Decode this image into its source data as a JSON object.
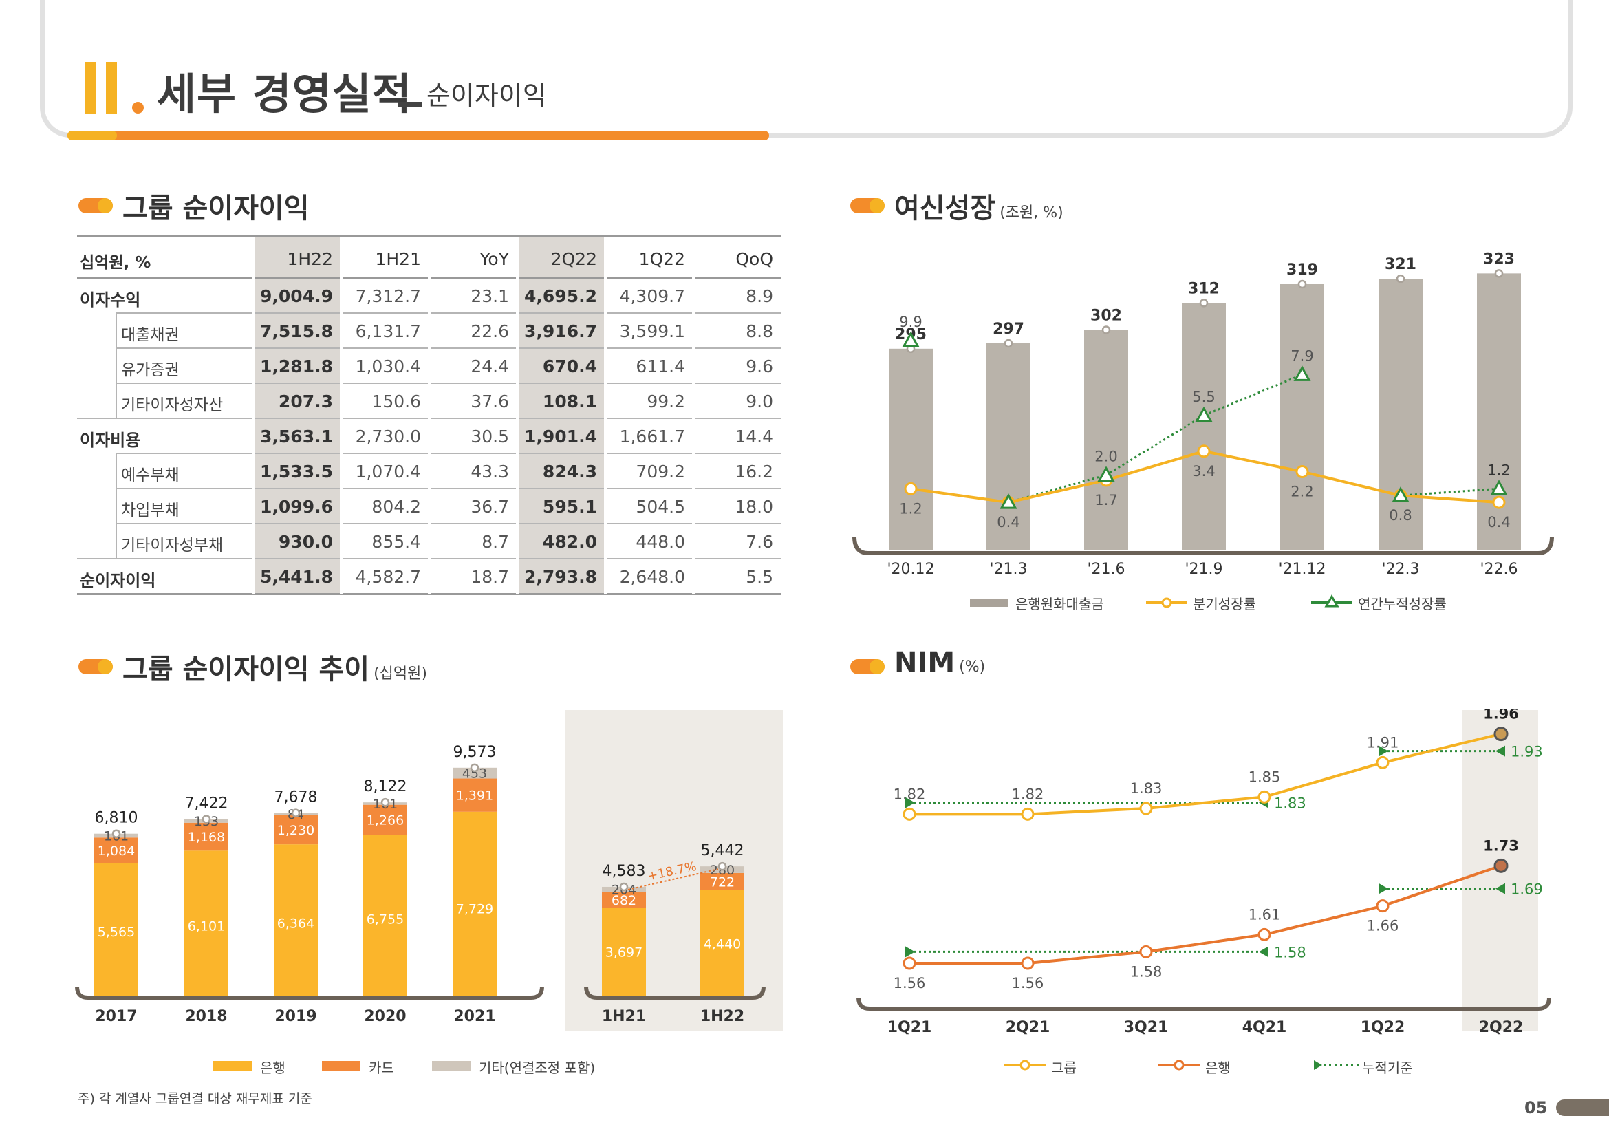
{
  "header": {
    "roman": "II",
    "title": "세부 경영실적",
    "underscore": "_",
    "subtitle": "순이자이익"
  },
  "sections": {
    "net_interest": {
      "title": "그룹 순이자이익"
    },
    "loan_growth": {
      "title": "여신성장",
      "unit": "(조원, %)"
    },
    "nii_trend": {
      "title": "그룹 순이자이익 추이",
      "unit": "(십억원)"
    },
    "nim": {
      "title": "NIM",
      "unit": "(%)"
    }
  },
  "table": {
    "columns": [
      "십억원, %",
      "1H22",
      "1H21",
      "YoY",
      "2Q22",
      "1Q22",
      "QoQ"
    ],
    "rows": [
      {
        "label": "이자수익",
        "indent": false,
        "values": [
          "9,004.9",
          "7,312.7",
          "23.1",
          "4,695.2",
          "4,309.7",
          "8.9"
        ]
      },
      {
        "label": "대출채권",
        "indent": true,
        "values": [
          "7,515.8",
          "6,131.7",
          "22.6",
          "3,916.7",
          "3,599.1",
          "8.8"
        ]
      },
      {
        "label": "유가증권",
        "indent": true,
        "values": [
          "1,281.8",
          "1,030.4",
          "24.4",
          "670.4",
          "611.4",
          "9.6"
        ]
      },
      {
        "label": "기타이자성자산",
        "indent": true,
        "values": [
          "207.3",
          "150.6",
          "37.6",
          "108.1",
          "99.2",
          "9.0"
        ]
      },
      {
        "label": "이자비용",
        "indent": false,
        "values": [
          "3,563.1",
          "2,730.0",
          "30.5",
          "1,901.4",
          "1,661.7",
          "14.4"
        ]
      },
      {
        "label": "예수부채",
        "indent": true,
        "values": [
          "1,533.5",
          "1,070.4",
          "43.3",
          "824.3",
          "709.2",
          "16.2"
        ]
      },
      {
        "label": "차입부채",
        "indent": true,
        "values": [
          "1,099.6",
          "804.2",
          "36.7",
          "595.1",
          "504.5",
          "18.0"
        ]
      },
      {
        "label": "기타이자성부채",
        "indent": true,
        "values": [
          "930.0",
          "855.4",
          "8.7",
          "482.0",
          "448.0",
          "7.6"
        ]
      },
      {
        "label": "순이자이익",
        "indent": false,
        "values": [
          "5,441.8",
          "4,582.7",
          "18.7",
          "2,793.8",
          "2,648.0",
          "5.5"
        ]
      }
    ]
  },
  "chart_data": [
    {
      "type": "bar",
      "id": "loan-growth",
      "categories": [
        "'20.12",
        "'21.3",
        "'21.6",
        "'21.9",
        "'21.12",
        "'22.3",
        "'22.6"
      ],
      "series": [
        {
          "name": "은행원화대출금",
          "kind": "bar",
          "values": [
            295,
            297,
            302,
            312,
            319,
            321,
            323
          ],
          "color": "#b9b3aa"
        },
        {
          "name": "분기성장률",
          "kind": "line",
          "values": [
            1.2,
            0.4,
            1.7,
            3.4,
            2.2,
            0.8,
            0.4
          ],
          "color": "#f5b223"
        },
        {
          "name": "연간누적성장률",
          "kind": "line",
          "values": [
            9.9,
            0.4,
            2.0,
            5.5,
            7.9,
            0.8,
            1.2
          ],
          "color": "#2e8b3a"
        }
      ],
      "ylim_bar": [
        0,
        330
      ],
      "legend": "bottom"
    },
    {
      "type": "bar",
      "id": "nii-trend-annual",
      "stacked": true,
      "categories": [
        "2017",
        "2018",
        "2019",
        "2020",
        "2021"
      ],
      "series": [
        {
          "name": "은행",
          "values": [
            5565,
            6101,
            6364,
            6755,
            7729
          ],
          "color": "#fbb52b"
        },
        {
          "name": "카드",
          "values": [
            1084,
            1168,
            1230,
            1266,
            1391
          ],
          "color": "#f3893a"
        },
        {
          "name": "기타(연결조정 포함)",
          "values": [
            161,
            153,
            84,
            101,
            453
          ],
          "color": "#cfc6bb"
        }
      ],
      "totals": [
        "6,810",
        "7,422",
        "7,678",
        "8,122",
        "9,573"
      ],
      "legend": "bottom"
    },
    {
      "type": "bar",
      "id": "nii-trend-half",
      "stacked": true,
      "categories": [
        "1H21",
        "1H22"
      ],
      "series": [
        {
          "name": "은행",
          "values": [
            3697,
            4440
          ],
          "color": "#fbb52b"
        },
        {
          "name": "카드",
          "values": [
            682,
            722
          ],
          "color": "#f3893a"
        },
        {
          "name": "기타(연결조정 포함)",
          "values": [
            204,
            280
          ],
          "color": "#cfc6bb"
        }
      ],
      "totals": [
        "4,583",
        "5,442"
      ],
      "annotation": "+18.7%"
    },
    {
      "type": "line",
      "id": "nim",
      "categories": [
        "1Q21",
        "2Q21",
        "3Q21",
        "4Q21",
        "1Q22",
        "2Q22"
      ],
      "series": [
        {
          "name": "그룹",
          "values": [
            1.82,
            1.82,
            1.83,
            1.85,
            1.91,
            1.96
          ],
          "color": "#f5b223"
        },
        {
          "name": "은행",
          "values": [
            1.56,
            1.56,
            1.58,
            1.61,
            1.66,
            1.73
          ],
          "color": "#e8762e"
        },
        {
          "name": "누적기준",
          "values": [
            null,
            null,
            null,
            null,
            null,
            null
          ],
          "color": "#2e8b3a"
        }
      ],
      "cumulative_labels": {
        "group_2021": "1.83",
        "bank_2021": "1.58",
        "group_2022": "1.93",
        "bank_2022": "1.69"
      },
      "legend": "bottom"
    }
  ],
  "legends": {
    "loan": [
      "은행원화대출금",
      "분기성장률",
      "연간누적성장률"
    ],
    "nii": [
      "은행",
      "카드",
      "기타(연결조정 포함)"
    ],
    "nim": [
      "그룹",
      "은행",
      "누적기준"
    ]
  },
  "footnote": "주) 각 계열사 그룹연결 대상 재무제표 기준",
  "page_number": "05"
}
